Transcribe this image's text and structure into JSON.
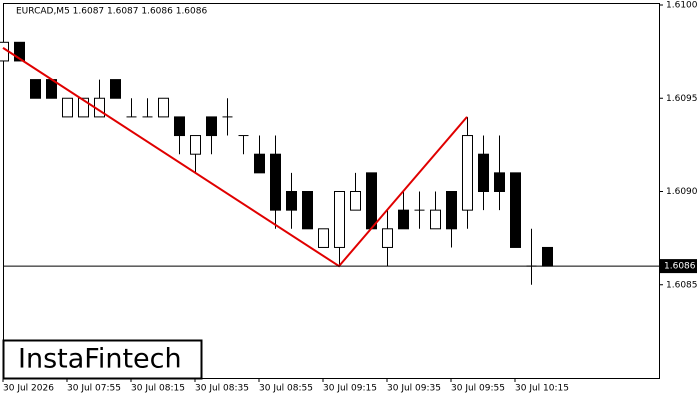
{
  "chart_data": {
    "type": "candlestick",
    "title": "EURCAD,M5  1.6087 1.6087 1.6086 1.6086",
    "categories": [
      "30 Jul 2026",
      null,
      null,
      null,
      "30 Jul 07:55",
      null,
      null,
      null,
      "30 Jul 08:15",
      null,
      null,
      null,
      "30 Jul 08:35",
      null,
      null,
      null,
      "30 Jul 08:55",
      null,
      null,
      null,
      "30 Jul 09:15",
      null,
      null,
      null,
      "30 Jul 09:35",
      null,
      null,
      null,
      "30 Jul 09:55",
      null,
      null,
      null,
      "30 Jul 10:15",
      null,
      null
    ],
    "open": [
      1.6097,
      1.6098,
      1.6096,
      1.6096,
      1.6094,
      1.6094,
      1.6094,
      1.6096,
      1.6094,
      1.6094,
      1.6094,
      1.6094,
      1.6092,
      1.6094,
      1.6094,
      1.6093,
      1.6092,
      1.6092,
      1.609,
      1.609,
      1.6087,
      1.6087,
      1.6089,
      1.6091,
      1.6087,
      1.6089,
      1.6089,
      1.6088,
      1.609,
      1.6089,
      1.6092,
      1.6091,
      1.6091,
      1.6086,
      1.6087
    ],
    "high": [
      1.6098,
      1.6098,
      1.6096,
      1.6096,
      1.6095,
      1.6095,
      1.6096,
      1.6096,
      1.6095,
      1.6095,
      1.6095,
      1.6094,
      1.6093,
      1.6094,
      1.6095,
      1.6093,
      1.6093,
      1.6093,
      1.6091,
      1.609,
      1.6088,
      1.609,
      1.6091,
      1.6091,
      1.6089,
      1.609,
      1.609,
      1.609,
      1.609,
      1.6094,
      1.6093,
      1.6093,
      1.6091,
      1.6088,
      1.6087
    ],
    "low": [
      1.6097,
      1.6097,
      1.6095,
      1.6095,
      1.6094,
      1.6094,
      1.6094,
      1.6095,
      1.6094,
      1.6094,
      1.6094,
      1.6092,
      1.6091,
      1.6092,
      1.6093,
      1.6092,
      1.6091,
      1.6088,
      1.6088,
      1.6088,
      1.6087,
      1.6086,
      1.6089,
      1.6088,
      1.6086,
      1.6088,
      1.6088,
      1.6088,
      1.6087,
      1.6088,
      1.6089,
      1.6089,
      1.6087,
      1.6085,
      1.6086
    ],
    "close": [
      1.6098,
      1.6097,
      1.6095,
      1.6095,
      1.6095,
      1.6095,
      1.6095,
      1.6095,
      1.6094,
      1.6094,
      1.6095,
      1.6093,
      1.6093,
      1.6093,
      1.6094,
      1.6093,
      1.6091,
      1.6089,
      1.6089,
      1.6088,
      1.6088,
      1.609,
      1.609,
      1.6088,
      1.6088,
      1.6088,
      1.6089,
      1.6089,
      1.6088,
      1.6093,
      1.609,
      1.609,
      1.6087,
      1.6086,
      1.6086
    ],
    "ylim": [
      1.608,
      1.61
    ],
    "yticks": [
      {
        "value": 1.61,
        "label": "1.6100"
      },
      1.6095,
      {
        "value": 1.609,
        "label": "1.6090"
      },
      1.6085
    ],
    "price_line": 1.6086,
    "pattern": {
      "color": "#e00000",
      "x": [
        0,
        21,
        29
      ],
      "y": [
        1.60977,
        1.6086,
        1.6094
      ]
    },
    "watermark": "InstaFintech"
  }
}
